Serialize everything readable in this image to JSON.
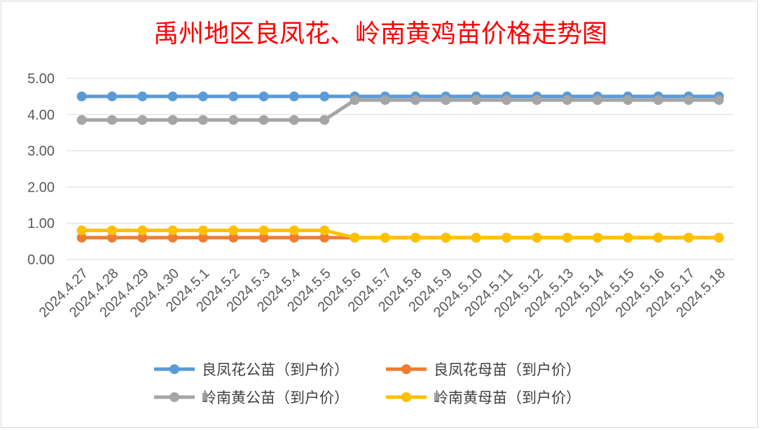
{
  "chart_data": {
    "type": "line",
    "title": "禹州地区良凤花、岭南黄鸡苗价格走势图",
    "ylim": [
      0,
      5
    ],
    "yticks": [
      "0.00",
      "1.00",
      "2.00",
      "3.00",
      "4.00",
      "5.00"
    ],
    "grid": true,
    "legend_position": "bottom",
    "categories": [
      "2024.4.27",
      "2024.4.28",
      "2024.4.29",
      "2024.4.30",
      "2024.5.1",
      "2024.5.2",
      "2024.5.3",
      "2024.5.4",
      "2024.5.5",
      "2024.5.6",
      "2024.5.7",
      "2024.5.8",
      "2024.5.9",
      "2024.5.10",
      "2024.5.11",
      "2024.5.12",
      "2024.5.13",
      "2024.5.14",
      "2024.5.15",
      "2024.5.16",
      "2024.5.17",
      "2024.5.18"
    ],
    "series": [
      {
        "name": "良凤花公苗（到户价）",
        "color": "#5b9bd5",
        "values": [
          4.5,
          4.5,
          4.5,
          4.5,
          4.5,
          4.5,
          4.5,
          4.5,
          4.5,
          4.5,
          4.5,
          4.5,
          4.5,
          4.5,
          4.5,
          4.5,
          4.5,
          4.5,
          4.5,
          4.5,
          4.5,
          4.5
        ]
      },
      {
        "name": "良凤花母苗（到户价）",
        "color": "#ed7d31",
        "values": [
          0.6,
          0.6,
          0.6,
          0.6,
          0.6,
          0.6,
          0.6,
          0.6,
          0.6,
          0.6,
          0.6,
          0.6,
          0.6,
          0.6,
          0.6,
          0.6,
          0.6,
          0.6,
          0.6,
          0.6,
          0.6,
          0.6
        ]
      },
      {
        "name": "岭南黄公苗（到户价）",
        "color": "#a5a5a5",
        "values": [
          3.85,
          3.85,
          3.85,
          3.85,
          3.85,
          3.85,
          3.85,
          3.85,
          3.85,
          4.4,
          4.4,
          4.4,
          4.4,
          4.4,
          4.4,
          4.4,
          4.4,
          4.4,
          4.4,
          4.4,
          4.4,
          4.4
        ]
      },
      {
        "name": "岭南黄母苗（到户价）",
        "color": "#ffc000",
        "values": [
          0.8,
          0.8,
          0.8,
          0.8,
          0.8,
          0.8,
          0.8,
          0.8,
          0.8,
          0.6,
          0.6,
          0.6,
          0.6,
          0.6,
          0.6,
          0.6,
          0.6,
          0.6,
          0.6,
          0.6,
          0.6,
          0.6
        ]
      }
    ]
  }
}
